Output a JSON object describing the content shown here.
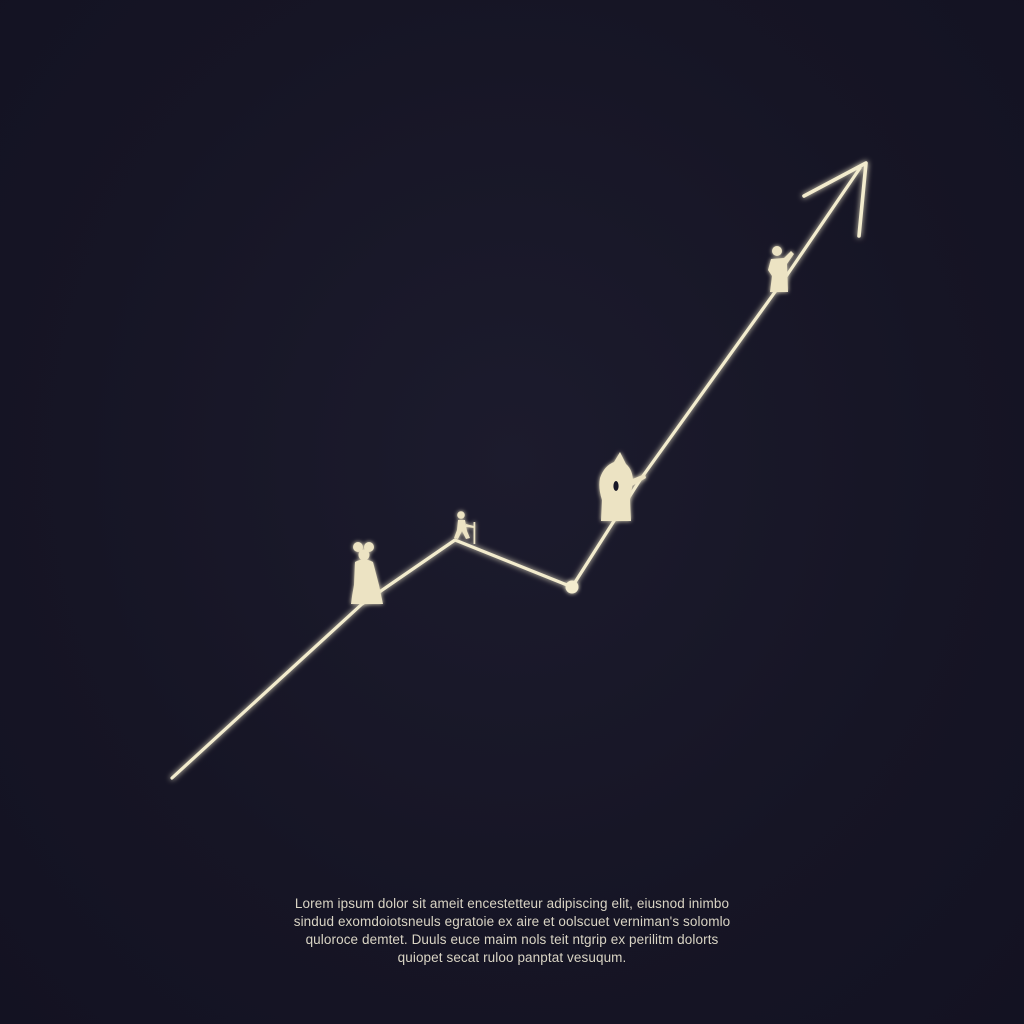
{
  "colors": {
    "background": "#161525",
    "line": "#f3ecce",
    "figure": "#ece3c3",
    "text": "#d9d4c4"
  },
  "caption": {
    "lines": [
      "Lorem ipsum dolor sit ameit encestetteur adipiscing elit, eiusnod inimbo",
      "sindud exomdoiotsneuls egratoie ex aire et oolscuet verniman's solomlo",
      "quloroce demtet. Duuls euce maim nols teit ntgrip ex perilitm dolorts",
      "quiopet secat ruloo panptat vesuqum."
    ]
  },
  "icons": [
    "woman-figure-icon",
    "small-walker-icon",
    "hooded-figure-icon",
    "climber-figure-icon",
    "arrow-head-icon"
  ]
}
